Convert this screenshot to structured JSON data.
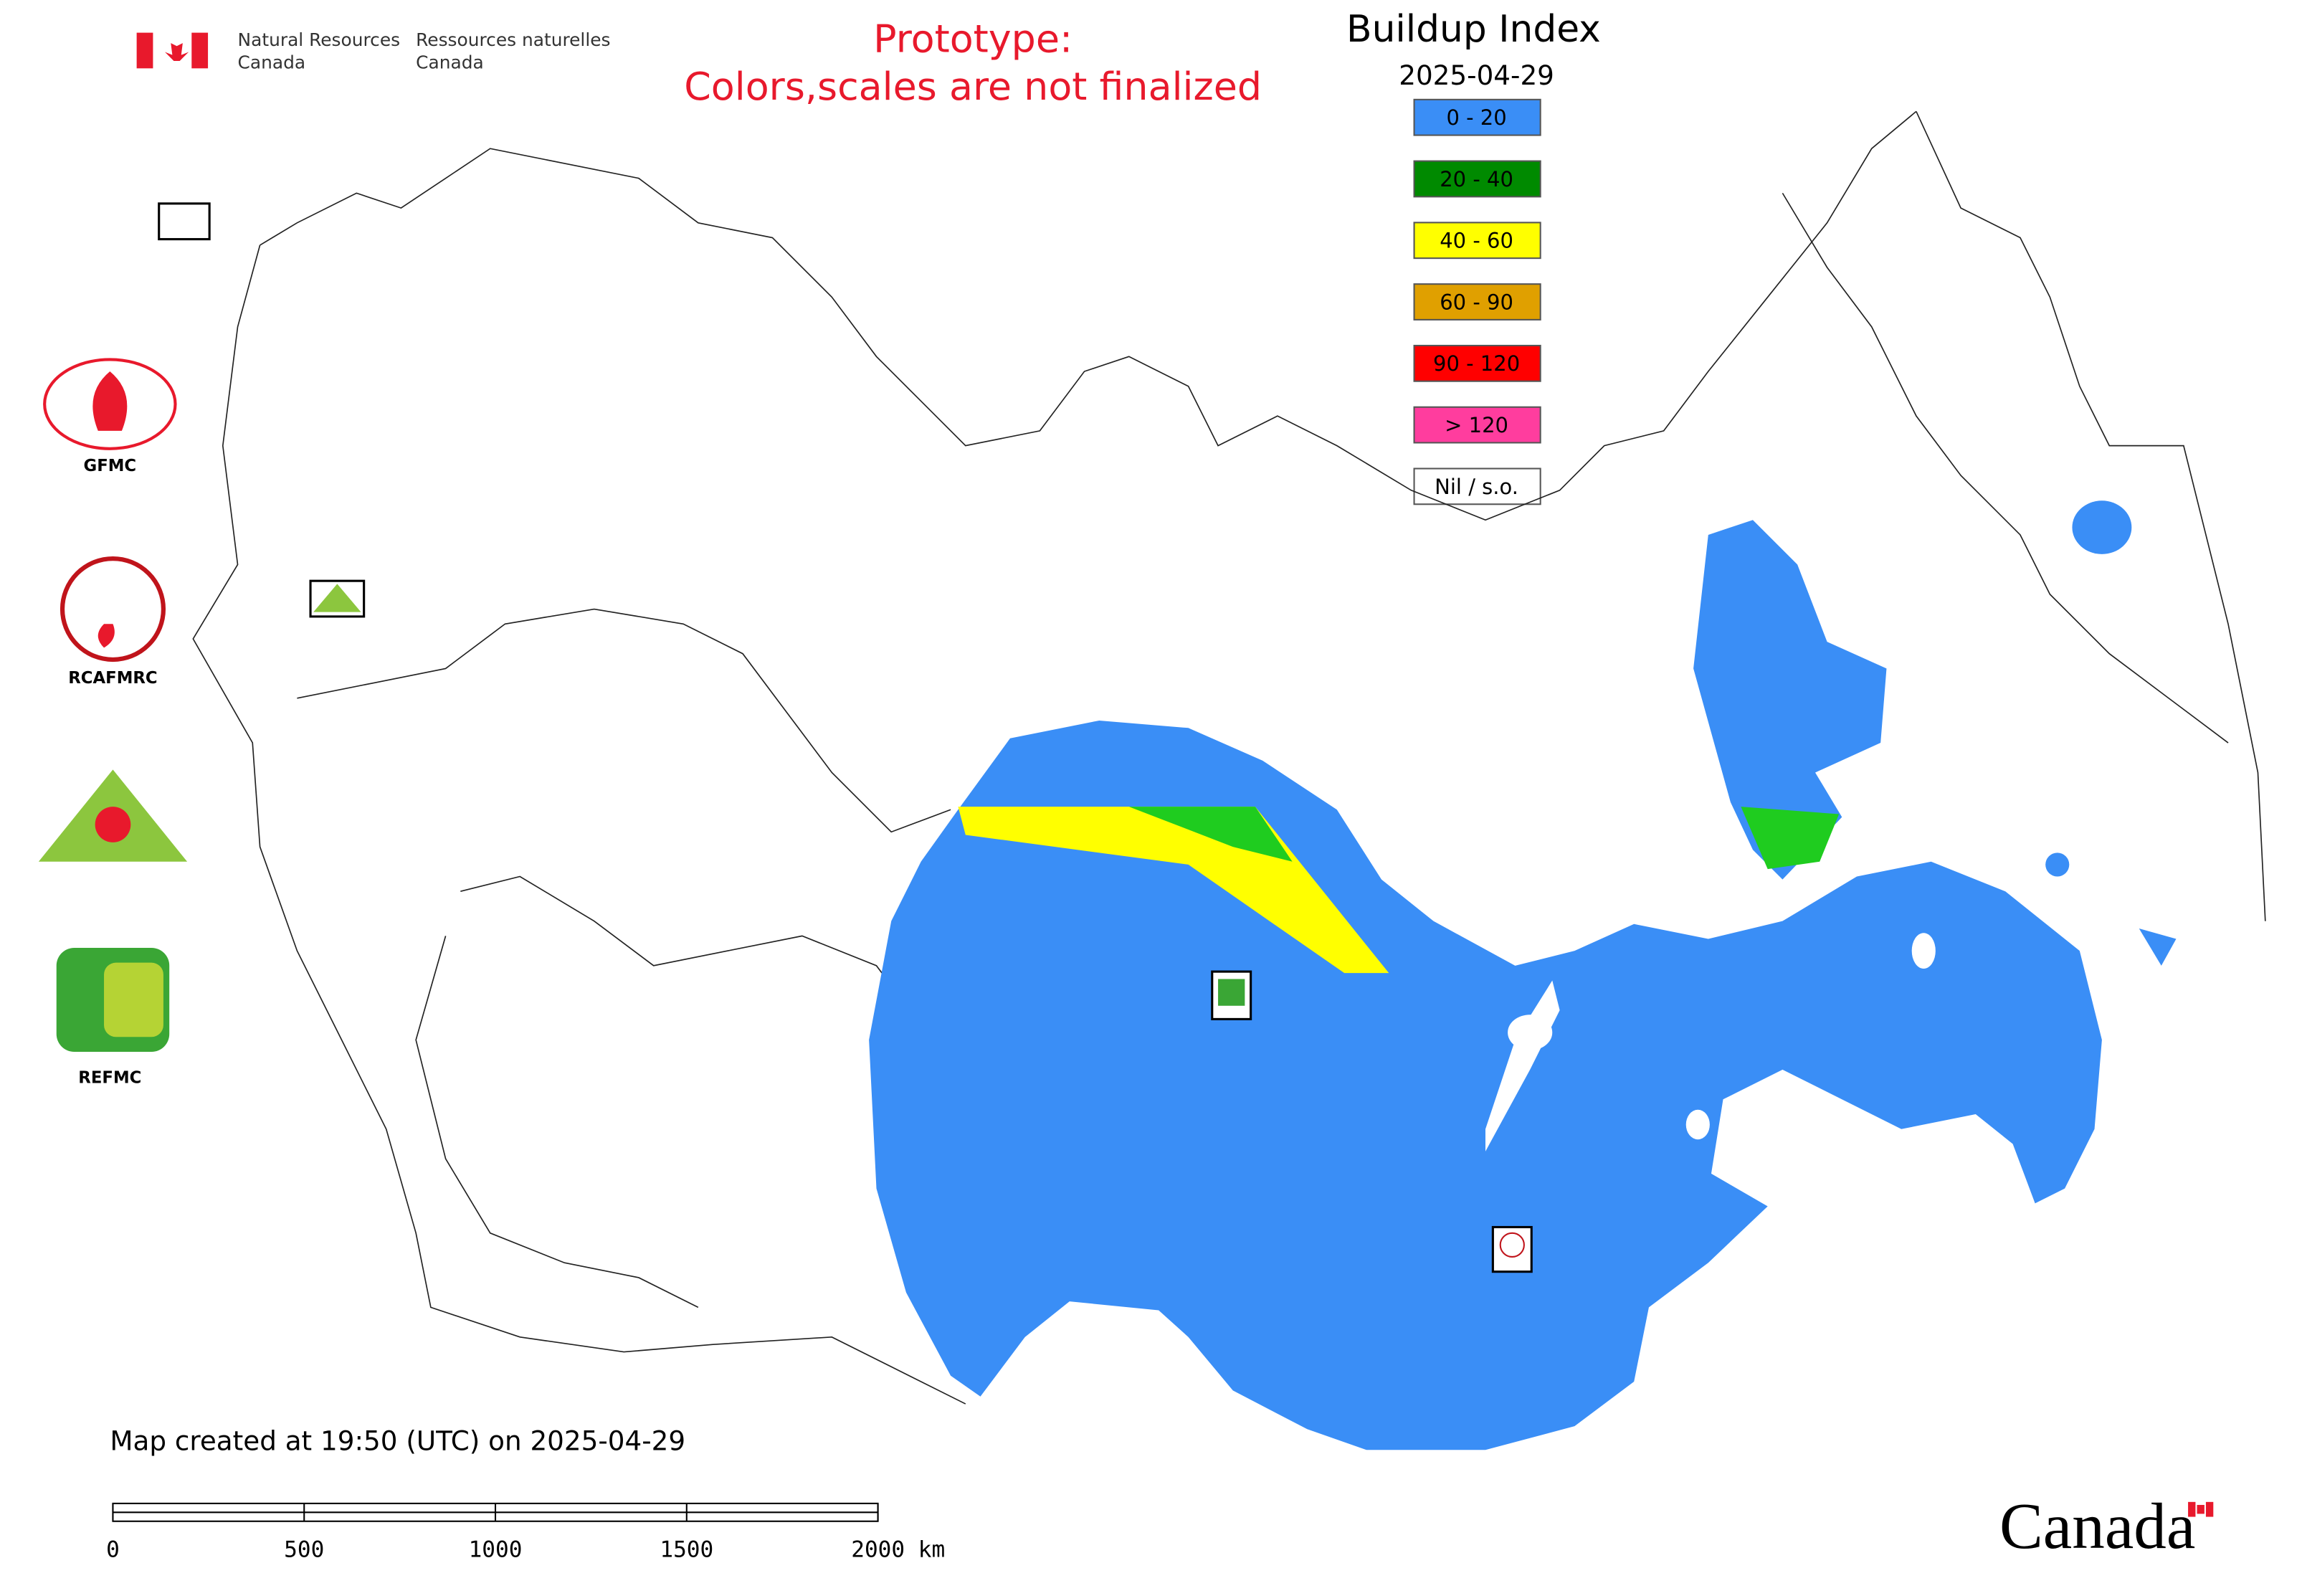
{
  "header": {
    "agency_en": [
      "Natural Resources",
      "Canada"
    ],
    "agency_fr": [
      "Ressources naturelles",
      "Canada"
    ]
  },
  "notice": [
    "Prototype:",
    "Colors,scales are not finalized"
  ],
  "legend": {
    "title": "Buildup Index",
    "date": "2025-04-29",
    "items": [
      {
        "label": "0 - 20",
        "color": "#3a8ef6"
      },
      {
        "label": "20 - 40",
        "color": "#008a00"
      },
      {
        "label": "40 - 60",
        "color": "#ffff00"
      },
      {
        "label": "60 - 90",
        "color": "#e0a000"
      },
      {
        "label": "90 - 120",
        "color": "#ff0000"
      },
      {
        "label": "> 120",
        "color": "#ff3d9e"
      },
      {
        "label": "Nil / s.o.",
        "color": "#ffffff"
      }
    ]
  },
  "logos": [
    "GFMC",
    "RCAFMRC",
    "REFMC"
  ],
  "footer": {
    "created": "Map created at 19:50 (UTC) on 2025-04-29",
    "wordmark": "Canada"
  },
  "scale_bar": {
    "xlim": [
      0,
      2000
    ],
    "xticks": [
      0,
      500,
      1000,
      1500,
      {
        "value": 2000,
        "label": "2000 km"
      }
    ]
  }
}
